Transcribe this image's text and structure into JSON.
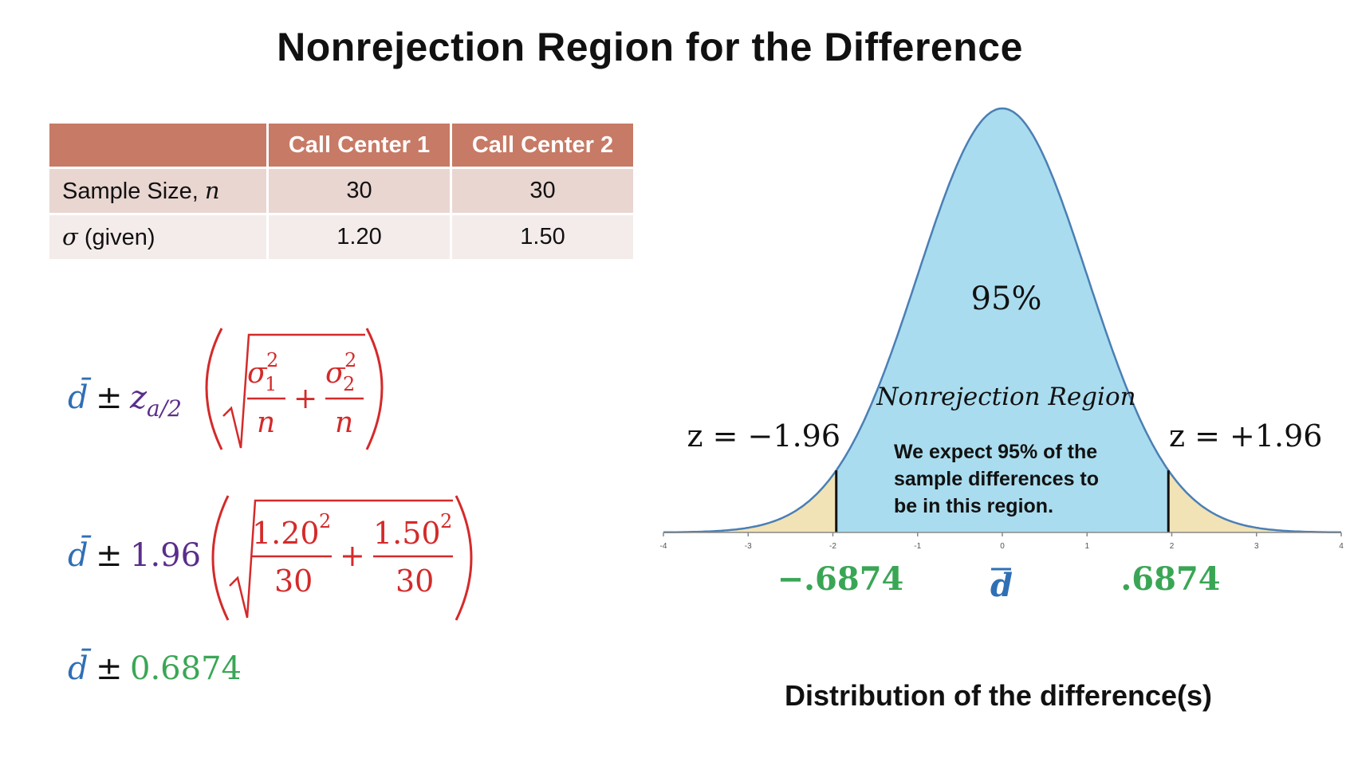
{
  "title": "Nonrejection Region for the Difference",
  "table": {
    "headers": [
      "",
      "Call Center 1",
      "Call Center 2"
    ],
    "rows": [
      {
        "label_text": "Sample Size, ",
        "label_var": "n",
        "values": [
          "30",
          "30"
        ]
      },
      {
        "label_var": "σ",
        "label_text": " (given)",
        "values": [
          "1.20",
          "1.50"
        ]
      }
    ]
  },
  "formulas": {
    "dbar": "d̄",
    "pm": "±",
    "plus": "+",
    "z_alpha": "z",
    "z_sub": "a/2",
    "sigma1": "σ",
    "sigma1_sub": "1",
    "sigma2": "σ",
    "sigma2_sub": "2",
    "sq": "2",
    "n": "n",
    "z_value": "1.96",
    "num1": "1.20",
    "num2": "1.50",
    "den": "30",
    "margin": "0.6874"
  },
  "chart": {
    "center_label": "95%",
    "region_label": "Nonrejection Region",
    "z_left_label": "z = −1.96",
    "z_right_label": "z = +1.96",
    "note_lines": [
      "We expect 95% of the",
      "sample differences to",
      "be in this region."
    ],
    "lower_bound_label": "−.6874",
    "upper_bound_label": ".6874",
    "center_bound_label": "d",
    "caption": "Distribution of the difference(s)"
  },
  "chart_data": {
    "type": "area",
    "distribution": "standard normal",
    "x_ticks": [
      -4,
      -3,
      -2,
      -1,
      0,
      1,
      2,
      3,
      4
    ],
    "xlim": [
      -4,
      4
    ],
    "critical_values": [
      -1.96,
      1.96
    ],
    "central_area_percent": 95,
    "colors": {
      "central": "#a9dcee",
      "tails": "#f1e3b6",
      "curve": "#4a7fb5",
      "bounds": "#3aa655",
      "dbar": "#2f6fb6"
    }
  },
  "colors": {
    "blue": "#2f6fb6",
    "purple": "#5a2d8c",
    "red": "#d42a2a",
    "green": "#3aa655"
  }
}
